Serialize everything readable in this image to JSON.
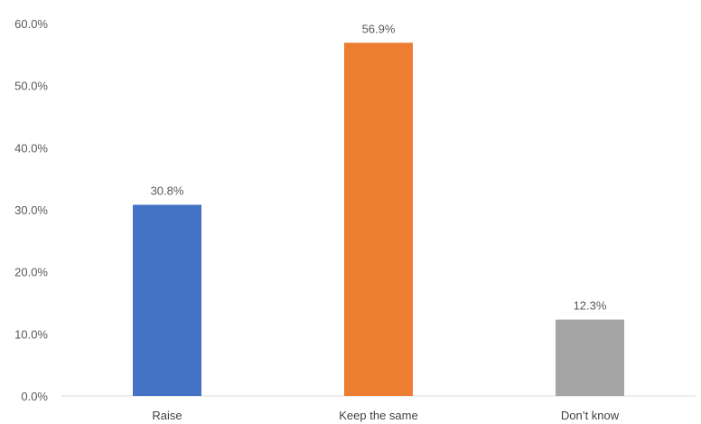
{
  "chart_data": {
    "type": "bar",
    "title": "",
    "xlabel": "",
    "ylabel": "",
    "categories": [
      "Raise",
      "Keep the same",
      "Don’t know"
    ],
    "values": [
      30.8,
      56.9,
      12.3
    ],
    "value_labels": [
      "30.8%",
      "56.9%",
      "12.3%"
    ],
    "colors": [
      "#4472c4",
      "#ed7d31",
      "#a5a5a5"
    ],
    "ylim": [
      0,
      60
    ],
    "y_ticks": [
      0,
      10,
      20,
      30,
      40,
      50,
      60
    ],
    "y_tick_labels": [
      "0.0%",
      "10.0%",
      "20.0%",
      "30.0%",
      "40.0%",
      "50.0%",
      "60.0%"
    ],
    "grid": false,
    "legend": "none"
  }
}
